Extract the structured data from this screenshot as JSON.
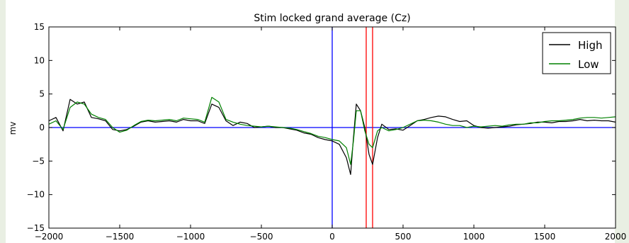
{
  "chart_data": {
    "type": "line",
    "title": "Stim locked grand average (Cz)",
    "xlabel": "",
    "ylabel": "mv",
    "xlim": [
      -2000,
      2000
    ],
    "ylim": [
      -15,
      15
    ],
    "x_ticks": [
      -2000,
      -1500,
      -1000,
      -500,
      0,
      500,
      1000,
      1500,
      2000
    ],
    "y_ticks": [
      15,
      10,
      5,
      0,
      -5,
      -10,
      -15
    ],
    "x_tick_labels": [
      "−2000",
      "−1500",
      "−1000",
      "−500",
      "0",
      "500",
      "1000",
      "1500",
      "2000"
    ],
    "y_tick_labels": [
      "15",
      "10",
      "5",
      "0",
      "−5",
      "−10",
      "−15"
    ],
    "legend": {
      "position": "top-right"
    },
    "reference_lines": [
      {
        "orientation": "horizontal",
        "value": 0,
        "color": "#0000ff"
      },
      {
        "orientation": "vertical",
        "value": 0,
        "color": "#0000ff"
      },
      {
        "orientation": "vertical",
        "value": 240,
        "color": "#ff0000"
      },
      {
        "orientation": "vertical",
        "value": 285,
        "color": "#ff0000"
      }
    ],
    "x": [
      -2000,
      -1950,
      -1900,
      -1850,
      -1800,
      -1750,
      -1700,
      -1650,
      -1600,
      -1550,
      -1500,
      -1450,
      -1400,
      -1350,
      -1300,
      -1250,
      -1200,
      -1150,
      -1100,
      -1050,
      -1000,
      -950,
      -900,
      -850,
      -800,
      -750,
      -700,
      -650,
      -600,
      -550,
      -500,
      -450,
      -400,
      -350,
      -300,
      -250,
      -200,
      -150,
      -100,
      -50,
      0,
      50,
      100,
      130,
      150,
      170,
      200,
      230,
      260,
      285,
      320,
      350,
      400,
      450,
      500,
      550,
      600,
      650,
      700,
      750,
      800,
      850,
      900,
      950,
      1000,
      1050,
      1100,
      1150,
      1200,
      1250,
      1300,
      1350,
      1400,
      1450,
      1500,
      1550,
      1600,
      1650,
      1700,
      1750,
      1800,
      1850,
      1900,
      1950,
      2000
    ],
    "series": [
      {
        "name": "High",
        "color": "#000000",
        "values": [
          1.0,
          1.5,
          -0.5,
          4.2,
          3.5,
          3.8,
          1.5,
          1.3,
          1.0,
          -0.3,
          -0.5,
          -0.3,
          0.2,
          0.8,
          1.0,
          0.8,
          0.9,
          1.0,
          0.8,
          1.2,
          1.0,
          1.0,
          0.6,
          3.5,
          3.0,
          1.0,
          0.3,
          0.8,
          0.6,
          0.0,
          0.1,
          0.2,
          0.0,
          0.0,
          -0.2,
          -0.4,
          -0.8,
          -1.0,
          -1.5,
          -1.8,
          -2.0,
          -2.5,
          -4.5,
          -7.0,
          -1.5,
          3.5,
          2.5,
          0.0,
          -4.0,
          -5.5,
          -1.5,
          0.5,
          -0.3,
          -0.2,
          -0.4,
          0.3,
          1.0,
          1.2,
          1.5,
          1.7,
          1.6,
          1.2,
          0.9,
          1.0,
          0.3,
          0.0,
          -0.1,
          0.0,
          0.1,
          0.2,
          0.4,
          0.5,
          0.6,
          0.8,
          0.8,
          0.7,
          0.9,
          0.9,
          1.0,
          1.2,
          1.0,
          1.1,
          1.0,
          1.0,
          0.8
        ]
      },
      {
        "name": "Low",
        "color": "#008000",
        "values": [
          0.5,
          1.0,
          -0.3,
          3.0,
          3.8,
          3.5,
          2.0,
          1.5,
          1.2,
          0.0,
          -0.7,
          -0.4,
          0.3,
          0.9,
          1.1,
          1.0,
          1.1,
          1.2,
          1.0,
          1.4,
          1.3,
          1.2,
          0.8,
          4.5,
          3.8,
          1.2,
          0.8,
          0.5,
          0.3,
          0.2,
          0.1,
          0.2,
          0.1,
          0.0,
          -0.1,
          -0.3,
          -0.6,
          -0.9,
          -1.3,
          -1.5,
          -1.8,
          -2.0,
          -3.0,
          -5.5,
          -2.0,
          2.5,
          2.5,
          -0.5,
          -2.5,
          -3.0,
          -0.5,
          0.0,
          -0.5,
          -0.3,
          0.0,
          0.5,
          1.0,
          1.1,
          1.0,
          0.8,
          0.5,
          0.3,
          0.3,
          0.0,
          0.2,
          0.1,
          0.2,
          0.3,
          0.2,
          0.4,
          0.5,
          0.5,
          0.7,
          0.7,
          0.9,
          1.0,
          1.0,
          1.1,
          1.2,
          1.4,
          1.5,
          1.5,
          1.4,
          1.5,
          1.6
        ]
      }
    ]
  }
}
